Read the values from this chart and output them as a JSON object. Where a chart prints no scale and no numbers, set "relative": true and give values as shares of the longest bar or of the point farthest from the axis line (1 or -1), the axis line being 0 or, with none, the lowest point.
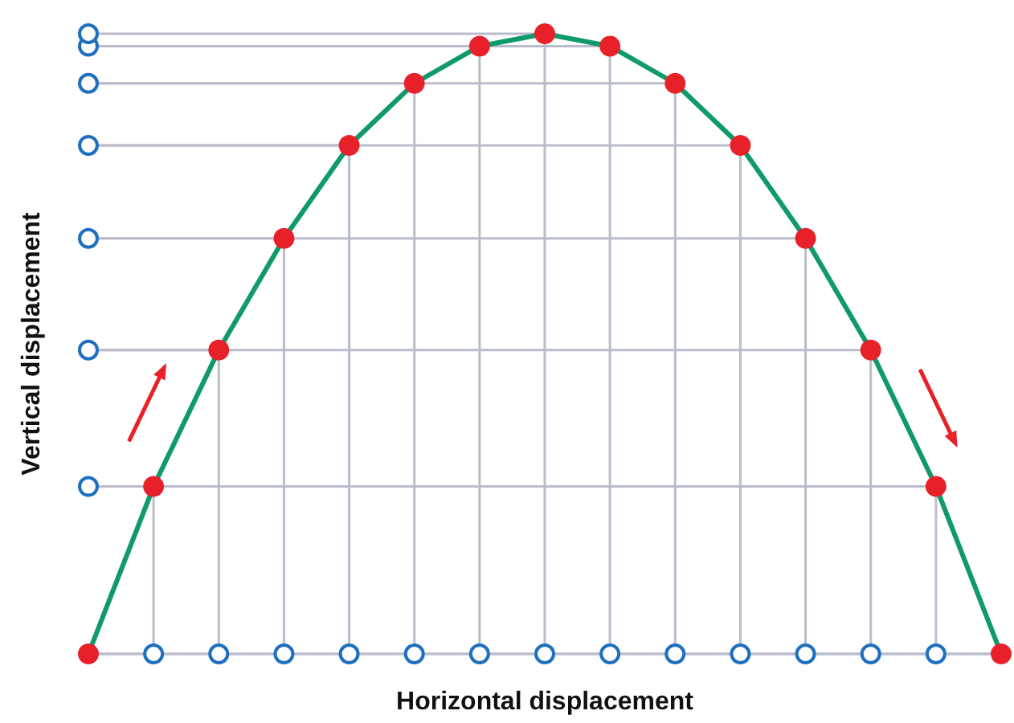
{
  "chart_data": {
    "type": "line",
    "xlabel": "Horizontal displacement",
    "ylabel": "Vertical displacement",
    "relative": true,
    "grid": true,
    "marker": "circle",
    "categories": [
      null,
      null,
      null,
      null,
      null,
      null,
      null,
      null,
      null,
      null,
      null,
      null,
      null,
      null,
      null
    ],
    "series": [
      {
        "color": "#109a6a",
        "colors": [
          "#e8202a",
          "#e8202a",
          "#e8202a",
          "#e8202a",
          "#e8202a",
          "#e8202a",
          "#e8202a",
          "#e8202a",
          "#e8202a",
          "#e8202a",
          "#e8202a",
          "#e8202a",
          "#e8202a",
          "#e8202a",
          "#e8202a"
        ],
        "values": [
          0,
          0.27,
          0.49,
          0.67,
          0.82,
          0.92,
          0.98,
          1,
          0.98,
          0.92,
          0.82,
          0.67,
          0.49,
          0.27,
          0
        ]
      }
    ]
  }
}
